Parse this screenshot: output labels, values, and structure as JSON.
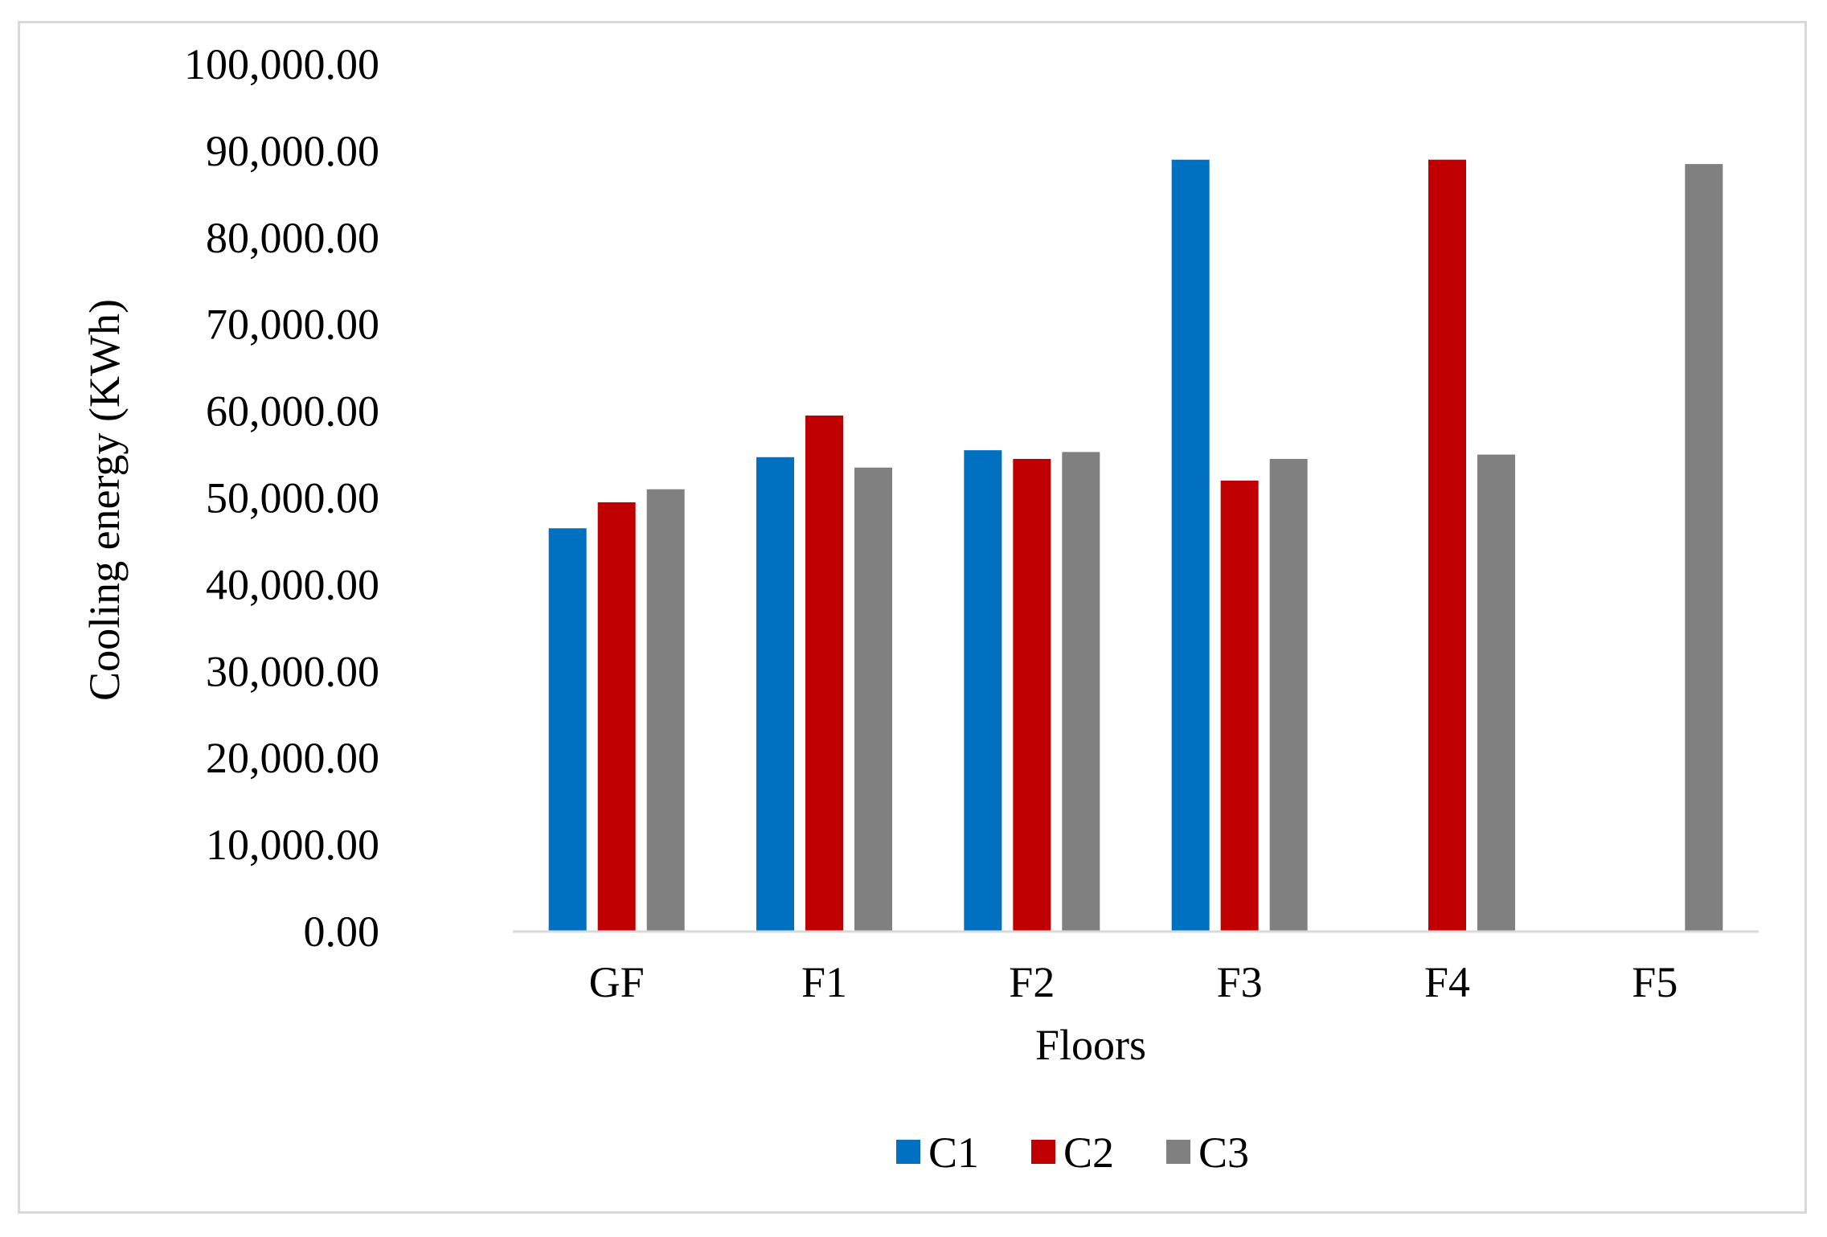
{
  "chart_data": {
    "type": "bar",
    "title": "",
    "xlabel": "Floors",
    "ylabel": "Cooling energy (KWh)",
    "ylim": [
      0,
      100000
    ],
    "ytick_step": 10000,
    "ytick_labels": [
      "0.00",
      "10,000.00",
      "20,000.00",
      "30,000.00",
      "40,000.00",
      "50,000.00",
      "60,000.00",
      "70,000.00",
      "80,000.00",
      "90,000.00",
      "100,000.00"
    ],
    "categories": [
      "GF",
      "F1",
      "F2",
      "F3",
      "F4",
      "F5"
    ],
    "series": [
      {
        "name": "C1",
        "color": "#0070c0",
        "values": [
          46500,
          54700,
          55500,
          89000,
          null,
          null
        ]
      },
      {
        "name": "C2",
        "color": "#c00000",
        "values": [
          49500,
          59500,
          54500,
          52000,
          89000,
          null
        ]
      },
      {
        "name": "C3",
        "color": "#808080",
        "values": [
          51000,
          53500,
          55300,
          54500,
          55000,
          88500
        ]
      }
    ],
    "grid": false,
    "legend_position": "bottom-center"
  }
}
